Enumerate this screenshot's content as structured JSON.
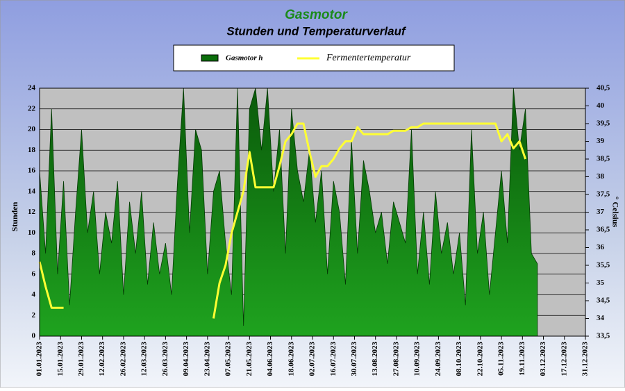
{
  "chart_data": {
    "type": "area_line",
    "title": "Gasmotor",
    "subtitle": "Stunden und Temperaturverlauf",
    "ylabel": "Stunden",
    "y2label": "° Celsius",
    "x": [
      "01.01.2023",
      "05.01.2023",
      "09.01.2023",
      "13.01.2023",
      "17.01.2023",
      "21.01.2023",
      "25.01.2023",
      "29.01.2023",
      "02.02.2023",
      "06.02.2023",
      "10.02.2023",
      "14.02.2023",
      "18.02.2023",
      "22.02.2023",
      "26.02.2023",
      "02.03.2023",
      "06.03.2023",
      "10.03.2023",
      "14.03.2023",
      "18.03.2023",
      "22.03.2023",
      "26.03.2023",
      "30.03.2023",
      "03.04.2023",
      "07.04.2023",
      "11.04.2023",
      "15.04.2023",
      "19.04.2023",
      "23.04.2023",
      "27.04.2023",
      "01.05.2023",
      "05.05.2023",
      "09.05.2023",
      "13.05.2023",
      "17.05.2023",
      "21.05.2023",
      "25.05.2023",
      "29.05.2023",
      "02.06.2023",
      "06.06.2023",
      "10.06.2023",
      "14.06.2023",
      "18.06.2023",
      "22.06.2023",
      "26.06.2023",
      "30.06.2023",
      "04.07.2023",
      "08.07.2023",
      "12.07.2023",
      "16.07.2023",
      "20.07.2023",
      "24.07.2023",
      "28.07.2023",
      "01.08.2023",
      "05.08.2023",
      "09.08.2023",
      "13.08.2023",
      "17.08.2023",
      "21.08.2023",
      "25.08.2023",
      "29.08.2023",
      "02.09.2023",
      "06.09.2023",
      "10.09.2023",
      "14.09.2023",
      "18.09.2023",
      "22.09.2023",
      "26.09.2023",
      "30.09.2023",
      "04.10.2023",
      "08.10.2023",
      "12.10.2023",
      "16.10.2023",
      "20.10.2023",
      "24.10.2023",
      "28.10.2023",
      "01.11.2023",
      "05.11.2023",
      "09.11.2023",
      "13.11.2023",
      "17.11.2023",
      "21.11.2023",
      "25.11.2023",
      "29.11.2023"
    ],
    "series": [
      {
        "name": "Gasmotor  h",
        "color": "#0b6e0b",
        "values": [
          16,
          8,
          22,
          6,
          15,
          3,
          12,
          20,
          10,
          14,
          6,
          12,
          9,
          15,
          4,
          13,
          8,
          14,
          5,
          11,
          6,
          9,
          4,
          15,
          24,
          10,
          20,
          18,
          6,
          14,
          16,
          9,
          4,
          24,
          1,
          22,
          24,
          18,
          24,
          14,
          20,
          8,
          22,
          16,
          13,
          18,
          11,
          16,
          6,
          15,
          12,
          5,
          19,
          8,
          17,
          14,
          10,
          12,
          7,
          13,
          11,
          9,
          20,
          6,
          12,
          5,
          14,
          8,
          11,
          6,
          10,
          3,
          20,
          8,
          12,
          4,
          10,
          16,
          9,
          24,
          18,
          22,
          8,
          7
        ]
      },
      {
        "name": "Fermentertemperatur",
        "color": "#ffff33",
        "axis": "y2",
        "values": [
          35.6,
          34.9,
          34.3,
          34.3,
          34.3,
          null,
          null,
          null,
          null,
          null,
          null,
          null,
          null,
          null,
          null,
          null,
          null,
          null,
          null,
          null,
          null,
          null,
          null,
          null,
          null,
          null,
          null,
          null,
          null,
          34.0,
          35.0,
          35.5,
          36.4,
          37.0,
          37.6,
          38.7,
          37.7,
          37.7,
          37.7,
          37.7,
          38.3,
          39.0,
          39.2,
          39.5,
          39.5,
          38.7,
          38.0,
          38.3,
          38.3,
          38.5,
          38.8,
          39.0,
          39.0,
          39.4,
          39.2,
          39.2,
          39.2,
          39.2,
          39.2,
          39.3,
          39.3,
          39.3,
          39.4,
          39.4,
          39.5,
          39.5,
          39.5,
          39.5,
          39.5,
          39.5,
          39.5,
          39.5,
          39.5,
          39.5,
          39.5,
          39.5,
          39.5,
          39.0,
          39.2,
          38.8,
          39.0,
          38.5,
          null,
          null
        ]
      }
    ],
    "xlim": [
      "01.01.2023",
      "31.12.2023"
    ],
    "xticks": [
      "01.01.2023",
      "15.01.2023",
      "29.01.2023",
      "12.02.2023",
      "26.02.2023",
      "12.03.2023",
      "26.03.2023",
      "09.04.2023",
      "23.04.2023",
      "07.05.2023",
      "21.05.2023",
      "04.06.2023",
      "18.06.2023",
      "02.07.2023",
      "16.07.2023",
      "30.07.2023",
      "13.08.2023",
      "27.08.2023",
      "10.09.2023",
      "24.09.2023",
      "08.10.2023",
      "22.10.2023",
      "05.11.2023",
      "19.11.2023",
      "03.12.2023",
      "17.12.2023",
      "31.12.2023"
    ],
    "ylim": [
      0,
      24
    ],
    "yticks": [
      0,
      2,
      4,
      6,
      8,
      10,
      12,
      14,
      16,
      18,
      20,
      22,
      24
    ],
    "y2lim": [
      33.5,
      40.5
    ],
    "y2ticks": [
      {
        "value": 33.5,
        "label": "33,5"
      },
      34,
      {
        "value": 34.5,
        "label": "34,5"
      },
      35,
      {
        "value": 35.5,
        "label": "35,5"
      },
      36,
      {
        "value": 36.5,
        "label": "36,5"
      },
      37,
      {
        "value": 37.5,
        "label": "37,5"
      },
      38,
      {
        "value": 38.5,
        "label": "38,5"
      },
      39,
      {
        "value": 39.5,
        "label": "39,5"
      },
      40,
      {
        "value": 40.5,
        "label": "40,5"
      }
    ],
    "grid": true,
    "legend": "top"
  }
}
